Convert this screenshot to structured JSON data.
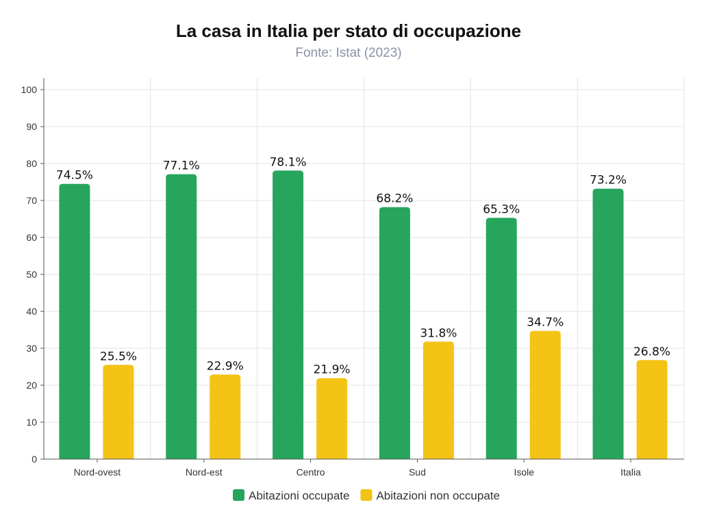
{
  "chart_data": {
    "type": "bar",
    "title": "La casa in Italia per stato di occupazione",
    "subtitle": "Fonte: Istat (2023)",
    "categories": [
      "Nord-ovest",
      "Nord-est",
      "Centro",
      "Sud",
      "Isole",
      "Italia"
    ],
    "series": [
      {
        "name": "Abitazioni occupate",
        "color": "#27a55c",
        "values": [
          74.5,
          77.1,
          78.1,
          68.2,
          65.3,
          73.2
        ],
        "labels": [
          "74.5%",
          "77.1%",
          "78.1%",
          "68.2%",
          "65.3%",
          "73.2%"
        ]
      },
      {
        "name": "Abitazioni non occupate",
        "color": "#f3c316",
        "values": [
          25.5,
          22.9,
          21.9,
          31.8,
          34.7,
          26.8
        ],
        "labels": [
          "25.5%",
          "22.9%",
          "21.9%",
          "31.8%",
          "34.7%",
          "26.8%"
        ]
      }
    ],
    "xlabel": "",
    "ylabel": "",
    "ylim": [
      0,
      100
    ],
    "yticks": [
      "0",
      "10",
      "20",
      "30",
      "40",
      "50",
      "60",
      "70",
      "80",
      "90",
      "100"
    ],
    "grid": true,
    "legend_position": "bottom-center"
  }
}
